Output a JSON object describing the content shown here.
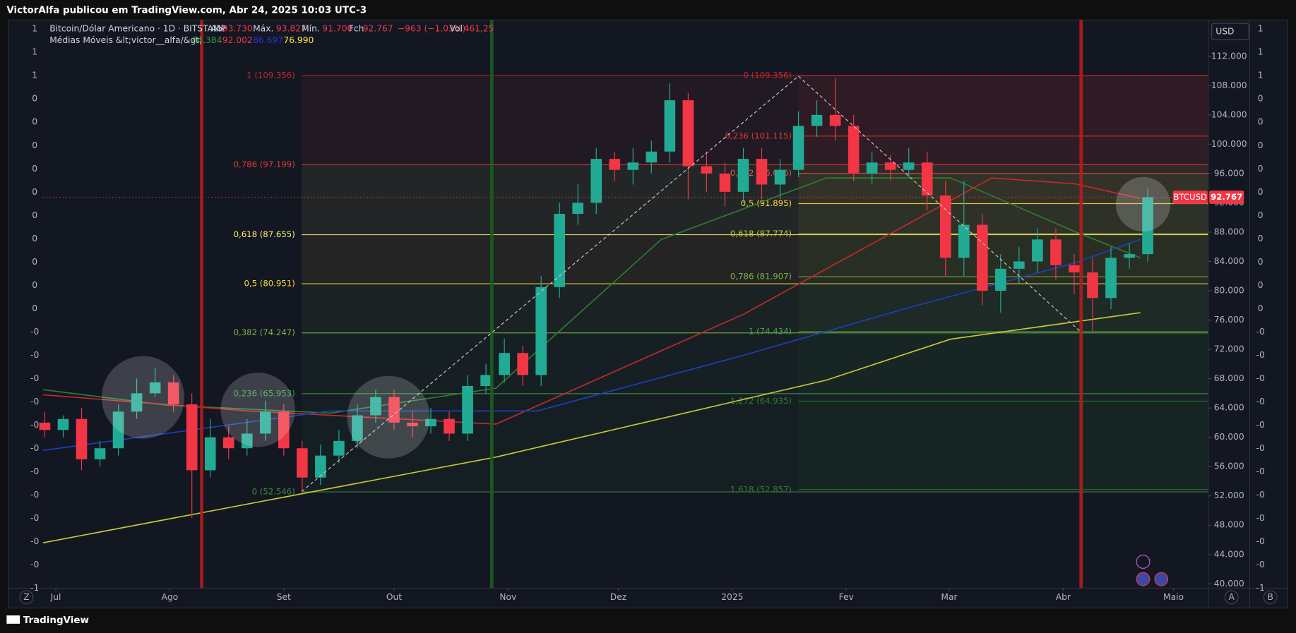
{
  "header": "VictorAlfa publicou em TradingView.com, Abr 24, 2025 10:03 UTC-3",
  "legend": {
    "symbol": "Bitcoin/Dólar Americano · 1D · BITSTAMP",
    "open_label": "Abr",
    "open": "93.730",
    "high_label": "Máx.",
    "high": "93.827",
    "low_label": "Mín.",
    "low": "91.700",
    "close_label": "Fch",
    "close": "92.767",
    "change": "−963 (−1,03%)",
    "volume_label": "Vol",
    "volume": "461,25",
    "indicator": "Médias Móveis &lt;victor__alfa/&gt;"
  },
  "currency": "USD",
  "footer": "TradingView",
  "scale_buttons": [
    "Z",
    "A",
    "B"
  ],
  "chart_data": {
    "type": "candlestick",
    "up_color": "#22ab94",
    "down_color": "#f23645",
    "grid": false,
    "x": [
      -3,
      2,
      7,
      12,
      17,
      22,
      27,
      32,
      37,
      42,
      47,
      52,
      57,
      62,
      67,
      72,
      77,
      82,
      87,
      92,
      97,
      102,
      107,
      112,
      117,
      122,
      127,
      132,
      137,
      142,
      147,
      152,
      157,
      162,
      167,
      172,
      177,
      182,
      187,
      192,
      197,
      202,
      207,
      212,
      217,
      222,
      227,
      232,
      237,
      242,
      247,
      252,
      257,
      262,
      267,
      272,
      277,
      282,
      287,
      292,
      297
    ],
    "series": [
      {
        "name": "BTCUSD",
        "open": [
          62000,
          61000,
          62500,
          57000,
          58500,
          63500,
          66000,
          67500,
          64500,
          55500,
          60000,
          58500,
          60500,
          63500,
          58500,
          54500,
          57500,
          59500,
          63000,
          65500,
          62000,
          61500,
          62500,
          60500,
          67000,
          68500,
          71500,
          68500,
          80500,
          90500,
          92000,
          98000,
          96500,
          97500,
          99000,
          106000,
          97000,
          96000,
          93500,
          98000,
          94500,
          96500,
          102500,
          104000,
          102500,
          96000,
          97500,
          96500,
          97500,
          93000,
          84500,
          89000,
          80000,
          83000,
          84000,
          87000,
          83500,
          82500,
          79000,
          84500,
          85000
        ],
        "high": [
          63500,
          63000,
          64000,
          59500,
          64500,
          68000,
          69500,
          68500,
          66000,
          62500,
          61500,
          62500,
          65000,
          64500,
          59500,
          59000,
          61000,
          64500,
          66500,
          66500,
          63500,
          64000,
          63500,
          68500,
          70000,
          73500,
          72500,
          82000,
          92000,
          94500,
          99500,
          99000,
          99500,
          100500,
          108300,
          107000,
          99000,
          97500,
          99500,
          99500,
          98000,
          104500,
          106000,
          109000,
          104000,
          99000,
          98500,
          99500,
          99000,
          95000,
          95000,
          90500,
          85000,
          86000,
          88500,
          88500,
          85000,
          84500,
          86000,
          86500,
          94000
        ],
        "low": [
          60000,
          60000,
          55500,
          56000,
          57500,
          62500,
          65500,
          63500,
          49000,
          54500,
          57000,
          57500,
          59500,
          57500,
          52500,
          53500,
          56500,
          58500,
          62000,
          61000,
          60000,
          60500,
          59500,
          59500,
          66000,
          67500,
          67000,
          67000,
          79000,
          89000,
          90500,
          95000,
          94500,
          96000,
          97500,
          92500,
          93500,
          91500,
          92000,
          92500,
          92500,
          95500,
          101000,
          100500,
          95000,
          94500,
          95000,
          95500,
          91000,
          82000,
          82000,
          78000,
          77000,
          81000,
          82500,
          81500,
          79500,
          74500,
          77500,
          83000,
          84000
        ],
        "close": [
          61000,
          62500,
          57000,
          58500,
          63500,
          66000,
          67500,
          64500,
          55500,
          60000,
          58500,
          60500,
          63500,
          58500,
          54500,
          57500,
          59500,
          63000,
          65500,
          62000,
          61500,
          62500,
          60500,
          67000,
          68500,
          71500,
          68500,
          80500,
          90500,
          92000,
          98000,
          96500,
          97500,
          99000,
          106000,
          97000,
          96000,
          93500,
          98000,
          94500,
          96500,
          102500,
          104000,
          102500,
          96000,
          97500,
          96500,
          97500,
          93000,
          84500,
          89000,
          80000,
          83000,
          84000,
          87000,
          83500,
          82500,
          79000,
          84500,
          85000,
          92767
        ]
      }
    ],
    "last_price": {
      "value": 92767,
      "label": "92.767"
    },
    "moving_averages": [
      {
        "legend_value": "84.384",
        "color": "#2e7d32",
        "label_color": "#2e9e3e",
        "x": [
          -3.5,
          29.8,
          74.7,
          119.7,
          164.7,
          209.6,
          243.4,
          277.1,
          295
        ],
        "values": [
          66500,
          64400,
          63300,
          66700,
          87000,
          95400,
          95400,
          88100,
          84500
        ]
      },
      {
        "legend_value": "92.002",
        "color": "#c62828",
        "label_color": "#f23645",
        "x": [
          -3.5,
          52.3,
          119.7,
          187.1,
          232.1,
          254.6,
          277.1,
          295
        ],
        "values": [
          65800,
          63600,
          61800,
          76800,
          89200,
          95400,
          94600,
          92600
        ]
      },
      {
        "legend_value": "86.697",
        "color": "#1e3fbf",
        "label_color": "#2933d8",
        "x": [
          -3.5,
          74.7,
          131,
          187.1,
          232.1,
          277.1,
          295
        ],
        "values": [
          58200,
          63600,
          63600,
          71200,
          77700,
          83800,
          87000
        ]
      },
      {
        "legend_value": "76.990",
        "color": "#c8c83a",
        "label_color": "#ffeb3b",
        "x": [
          -3.5,
          119.7,
          209.6,
          243.4,
          295
        ],
        "values": [
          45600,
          57300,
          67800,
          73400,
          77000
        ]
      }
    ],
    "xlim": [
      -3.5,
      313.5
    ],
    "xticks": [
      {
        "value": 0,
        "label": "Jul"
      },
      {
        "value": 31,
        "label": "Ago"
      },
      {
        "value": 62,
        "label": "Set"
      },
      {
        "value": 92,
        "label": "Out"
      },
      {
        "value": 123,
        "label": "Nov"
      },
      {
        "value": 153,
        "label": "Dez"
      },
      {
        "value": 184,
        "label": "2025"
      },
      {
        "value": 215,
        "label": "Fev"
      },
      {
        "value": 243,
        "label": "Mar"
      },
      {
        "value": 274,
        "label": "Abr"
      },
      {
        "value": 304,
        "label": "Maio"
      }
    ],
    "ylim": [
      39400,
      116500
    ],
    "yticks": [
      {
        "value": 112000,
        "label": "112.000"
      },
      {
        "value": 108000,
        "label": "108.000"
      },
      {
        "value": 104000,
        "label": "104.000"
      },
      {
        "value": 100000,
        "label": "100.000"
      },
      {
        "value": 96000,
        "label": "96.000"
      },
      {
        "value": 92000,
        "label": "92.000"
      },
      {
        "value": 88000,
        "label": "88.000"
      },
      {
        "value": 84000,
        "label": "84.000"
      },
      {
        "value": 80000,
        "label": "80.000"
      },
      {
        "value": 76000,
        "label": "76.000"
      },
      {
        "value": 72000,
        "label": "72.000"
      },
      {
        "value": 68000,
        "label": "68.000"
      },
      {
        "value": 64000,
        "label": "64.000"
      },
      {
        "value": 60000,
        "label": "60.000"
      },
      {
        "value": 56000,
        "label": "56.000"
      },
      {
        "value": 52000,
        "label": "52.000"
      },
      {
        "value": 48000,
        "label": "48.000"
      },
      {
        "value": 44000,
        "label": "44.000"
      },
      {
        "value": 40000,
        "label": "40.000"
      }
    ],
    "indicator_scale": [
      "1",
      "1",
      "1",
      "0",
      "0",
      "0",
      "0",
      "0",
      "0",
      "0",
      "0",
      "0",
      "0",
      "-0",
      "-0",
      "-0",
      "-0",
      "-0",
      "-0",
      "-0",
      "-0",
      "-0",
      "-0",
      "-0",
      "-1"
    ],
    "fib_left": {
      "levels": [
        {
          "value": 109356,
          "label": "1 (109.356)",
          "color": "#c62828"
        },
        {
          "value": 97199,
          "label": "0,786 (97.199)",
          "color": "#e53935"
        },
        {
          "value": 87655,
          "label": "0,618 (87.655)",
          "color": "#fff176"
        },
        {
          "value": 80951,
          "label": "0,5 (80.951)",
          "color": "#fdd835"
        },
        {
          "value": 74247,
          "label": "0,382 (74.247)",
          "color": "#7cb342"
        },
        {
          "value": 65953,
          "label": "0,236 (65.953)",
          "color": "#43a047"
        },
        {
          "value": 52546,
          "label": "0 (52.546)",
          "color": "#388e3c"
        }
      ]
    },
    "fib_right": {
      "levels": [
        {
          "value": 109356,
          "label": "0 (109.356)",
          "color": "#c62828"
        },
        {
          "value": 101115,
          "label": "0,236 (101.115)",
          "color": "#e53935"
        },
        {
          "value": 96016,
          "label": "0,382 (96.016)",
          "color": "#ef5350"
        },
        {
          "value": 91895,
          "label": "0,5 (91.895)",
          "color": "#fdd835"
        },
        {
          "value": 87774,
          "label": "0,618 (87.774)",
          "color": "#c0ca33"
        },
        {
          "value": 81907,
          "label": "0,786 (81.907)",
          "color": "#7cb342"
        },
        {
          "value": 74434,
          "label": "1 (74.434)",
          "color": "#43a047"
        },
        {
          "value": 64935,
          "label": "1,272 (64.935)",
          "color": "#2e7d32"
        },
        {
          "value": 52857,
          "label": "1,618 (52.857)",
          "color": "#2e7d32"
        }
      ]
    }
  }
}
